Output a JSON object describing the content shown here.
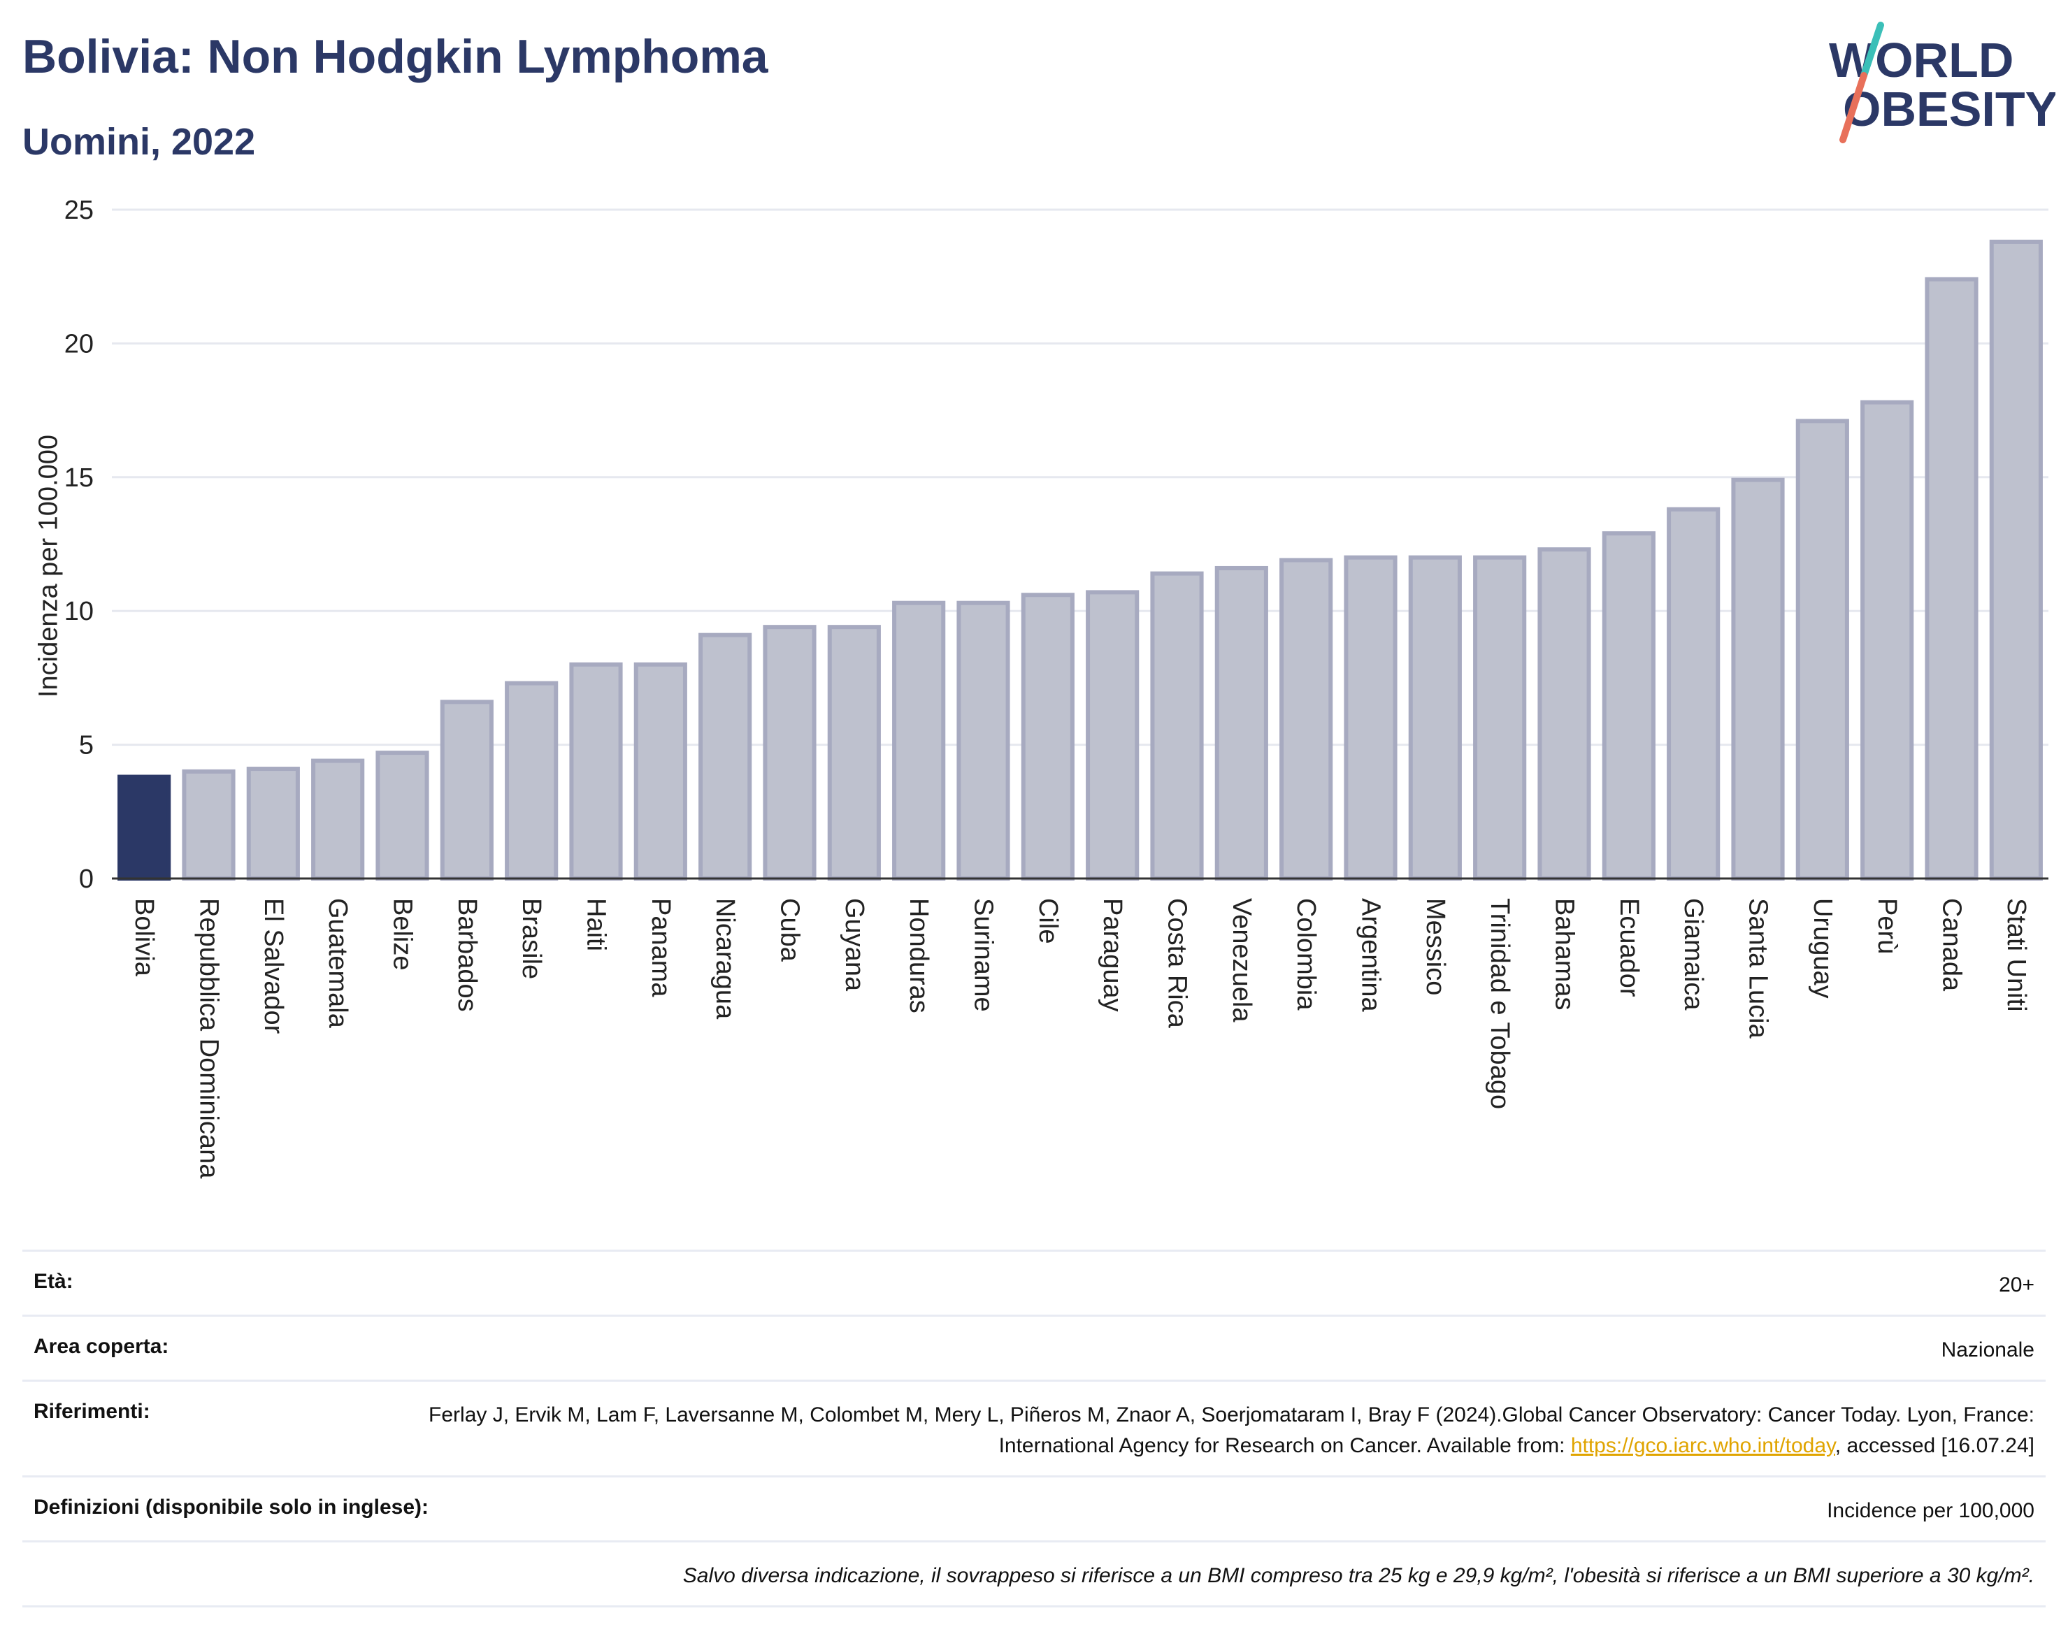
{
  "header": {
    "title": "Bolivia: Non Hodgkin Lymphoma",
    "subtitle": "Uomini, 2022"
  },
  "logo": {
    "line1": "WORLD",
    "line2": "OBESITY"
  },
  "colors": {
    "title": "#2b3866",
    "highlight_bar": "#2b3866",
    "bar_fill": "#bec1ce",
    "bar_stroke": "#a7aac0",
    "grid": "#e6e8ef",
    "logo_teal": "#3bbfb8",
    "logo_coral": "#e8705a",
    "link": "#e0a400"
  },
  "chart_data": {
    "type": "bar",
    "categories": [
      "Bolivia",
      "Repubblica Dominicana",
      "El Salvador",
      "Guatemala",
      "Belize",
      "Barbados",
      "Brasile",
      "Haiti",
      "Panama",
      "Nicaragua",
      "Cuba",
      "Guyana",
      "Honduras",
      "Suriname",
      "Cile",
      "Paraguay",
      "Costa Rica",
      "Venezuela",
      "Colombia",
      "Argentina",
      "Messico",
      "Trinidad e Tobago",
      "Bahamas",
      "Ecuador",
      "Giamaica",
      "Santa Lucia",
      "Uruguay",
      "Perù",
      "Canada",
      "Stati Uniti"
    ],
    "values": [
      3.8,
      4.0,
      4.1,
      4.4,
      4.7,
      6.6,
      7.3,
      8.0,
      8.0,
      9.1,
      9.4,
      9.4,
      10.3,
      10.3,
      10.6,
      10.7,
      11.4,
      11.6,
      11.9,
      12.0,
      12.0,
      12.0,
      12.3,
      12.9,
      13.8,
      14.9,
      17.1,
      17.8,
      22.4,
      23.8
    ],
    "highlight": "Bolivia",
    "ylabel": "Incidenza per 100.000",
    "ylim": [
      0,
      25
    ],
    "yticks": [
      0,
      5,
      10,
      15,
      20,
      25
    ],
    "grid": true
  },
  "info": {
    "age_label": "Età:",
    "age_value": "20+",
    "area_label": "Area coperta:",
    "area_value": "Nazionale",
    "refs_label": "Riferimenti:",
    "refs_text": "Ferlay J, Ervik M, Lam F, Laversanne M, Colombet M, Mery L, Piñeros M, Znaor A, Soerjomataram I, Bray F (2024).Global Cancer Observatory: Cancer Today. Lyon, France: International Agency for Research on Cancer. Available from: ",
    "refs_link": "https://gco.iarc.who.int/today",
    "refs_suffix": ", accessed [16.07.24]",
    "def_label": "Definizioni (disponibile solo in inglese):",
    "def_value": "Incidence per 100,000",
    "note": "Salvo diversa indicazione, il sovrappeso si riferisce a un BMI compreso tra 25 kg e 29,9 kg/m², l'obesità si riferisce a un BMI superiore a 30 kg/m²."
  }
}
